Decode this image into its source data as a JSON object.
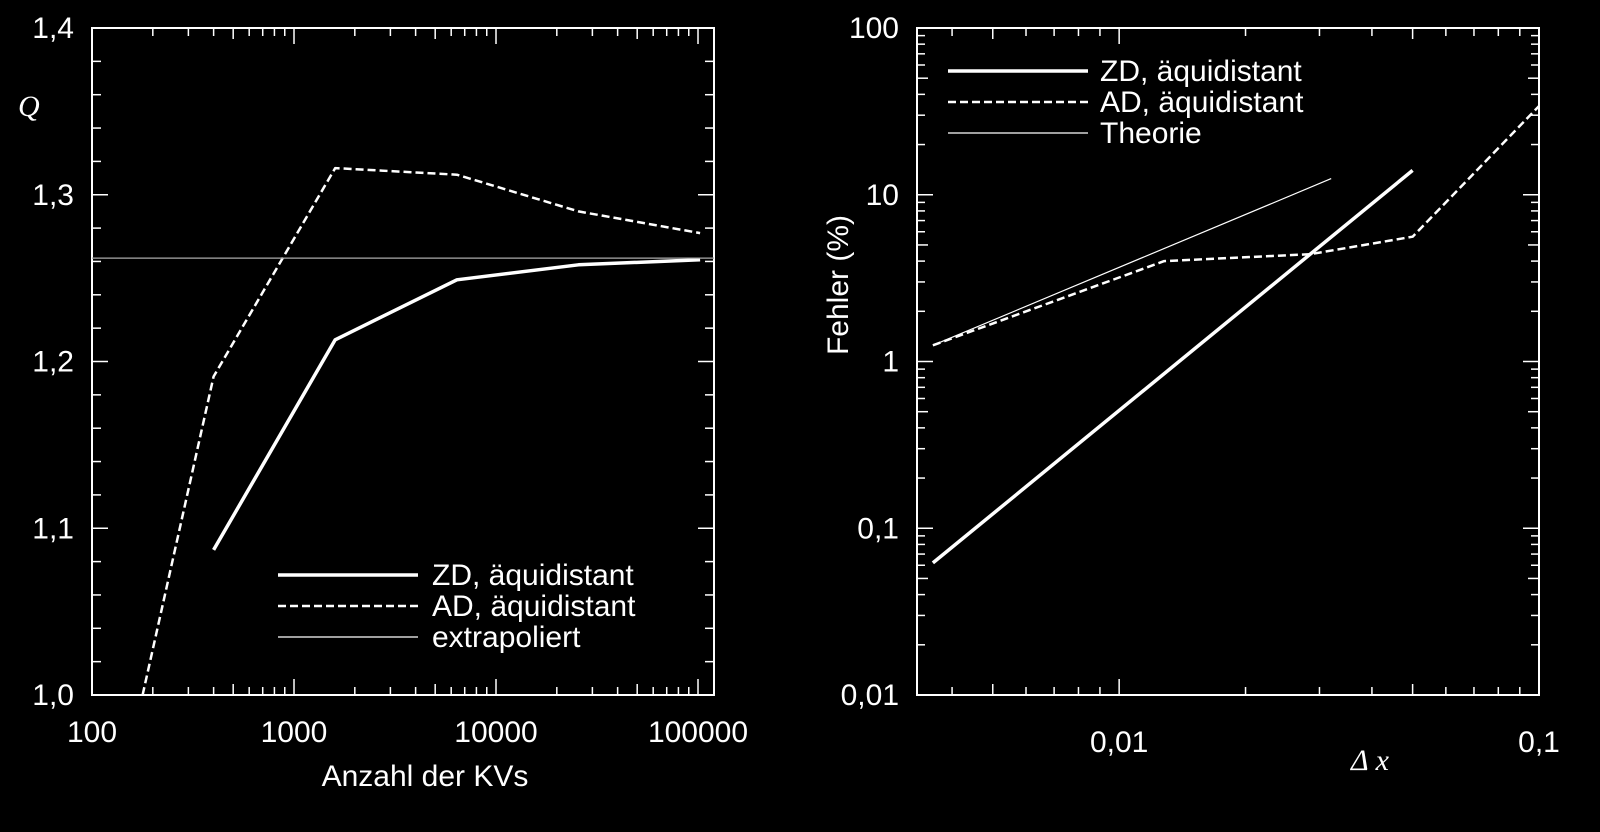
{
  "chart_data": [
    {
      "type": "line",
      "xscale": "log",
      "xlim": [
        100,
        120000
      ],
      "ylim": [
        1.0,
        1.4
      ],
      "xticks": [
        100,
        1000,
        10000,
        100000
      ],
      "xtick_labels": [
        "100",
        "1000",
        "10000",
        "100000"
      ],
      "yticks": [
        1.0,
        1.1,
        1.2,
        1.3,
        1.4
      ],
      "ytick_labels": [
        "1,0",
        "1,1",
        "1,2",
        "1,3",
        "1,4"
      ],
      "xlabel": "Anzahl der KVs",
      "ylabel": "Q",
      "legend_position": "bottom-right",
      "series": [
        {
          "name": "ZD, äquidistant",
          "style": "solid-thick",
          "x": [
            400,
            1600,
            6400,
            25600,
            102400
          ],
          "y": [
            1.087,
            1.213,
            1.249,
            1.258,
            1.261
          ]
        },
        {
          "name": "AD, äquidistant",
          "style": "dashed",
          "x": [
            178,
            400,
            1600,
            6400,
            25600,
            102400
          ],
          "y": [
            1.0,
            1.191,
            1.316,
            1.312,
            1.29,
            1.277
          ]
        },
        {
          "name": "extrapoliert",
          "style": "solid-thin",
          "x": [
            100,
            120000
          ],
          "y": [
            1.262,
            1.262
          ]
        }
      ]
    },
    {
      "type": "line",
      "xscale": "log",
      "yscale": "log",
      "xlim": [
        0.0033,
        0.1
      ],
      "ylim": [
        0.01,
        100
      ],
      "xticks": [
        0.01,
        0.1
      ],
      "xtick_labels": [
        "0,01",
        "0,1"
      ],
      "yticks": [
        0.01,
        0.1,
        1,
        10,
        100
      ],
      "ytick_labels": [
        "0,01",
        "0,1",
        "1",
        "10",
        "100"
      ],
      "xlabel": "Δ x",
      "ylabel": "Fehler (%)",
      "legend_position": "top-left",
      "series": [
        {
          "name": "ZD, äquidistant",
          "style": "solid-thick",
          "x": [
            0.0036,
            0.05
          ],
          "y": [
            0.062,
            14
          ]
        },
        {
          "name": "AD, äquidistant",
          "style": "dashed",
          "x": [
            0.0036,
            0.0128,
            0.0285,
            0.05,
            0.1
          ],
          "y": [
            1.25,
            4.0,
            4.4,
            5.6,
            34
          ]
        },
        {
          "name": "Theorie",
          "style": "solid-thin",
          "x": [
            0.0036,
            0.032
          ],
          "y": [
            1.25,
            12.5
          ]
        }
      ]
    }
  ]
}
